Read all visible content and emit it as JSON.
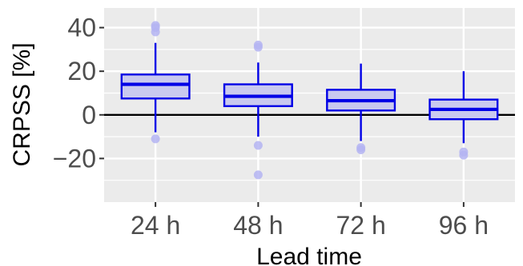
{
  "chart_data": {
    "type": "boxplot",
    "xlabel": "Lead time",
    "ylabel": "CRPSS [%]",
    "ylim": [
      -40,
      49
    ],
    "yticks": [
      -20,
      0,
      20,
      40
    ],
    "ytick_labels": [
      "−20",
      "0",
      "20",
      "40"
    ],
    "grid": true,
    "reference_line_y": 0,
    "colors": {
      "panel_background": "#ebebeb",
      "grid_line": "#ffffff",
      "box_stroke": "#0000e6",
      "box_fill": "#c9c9ef",
      "outlier": "#b4b4f2",
      "reference_line": "#000000"
    },
    "categories": [
      "24 h",
      "48 h",
      "72 h",
      "96 h"
    ],
    "boxes": [
      {
        "category": "24 h",
        "whisker_low": -8,
        "q1": 7.5,
        "median": 14,
        "q3": 18.5,
        "whisker_high": 33,
        "outliers": [
          41,
          40,
          38,
          -11
        ]
      },
      {
        "category": "48 h",
        "whisker_low": -10,
        "q1": 4,
        "median": 8.5,
        "q3": 14,
        "whisker_high": 24,
        "outliers": [
          32,
          31,
          -14,
          -27.5
        ]
      },
      {
        "category": "72 h",
        "whisker_low": -12,
        "q1": 2,
        "median": 6.5,
        "q3": 11.5,
        "whisker_high": 23.5,
        "outliers": [
          -15,
          -16
        ]
      },
      {
        "category": "96 h",
        "whisker_low": -13,
        "q1": -2,
        "median": 2.5,
        "q3": 7,
        "whisker_high": 20,
        "outliers": [
          -17,
          -18.5
        ]
      }
    ]
  }
}
